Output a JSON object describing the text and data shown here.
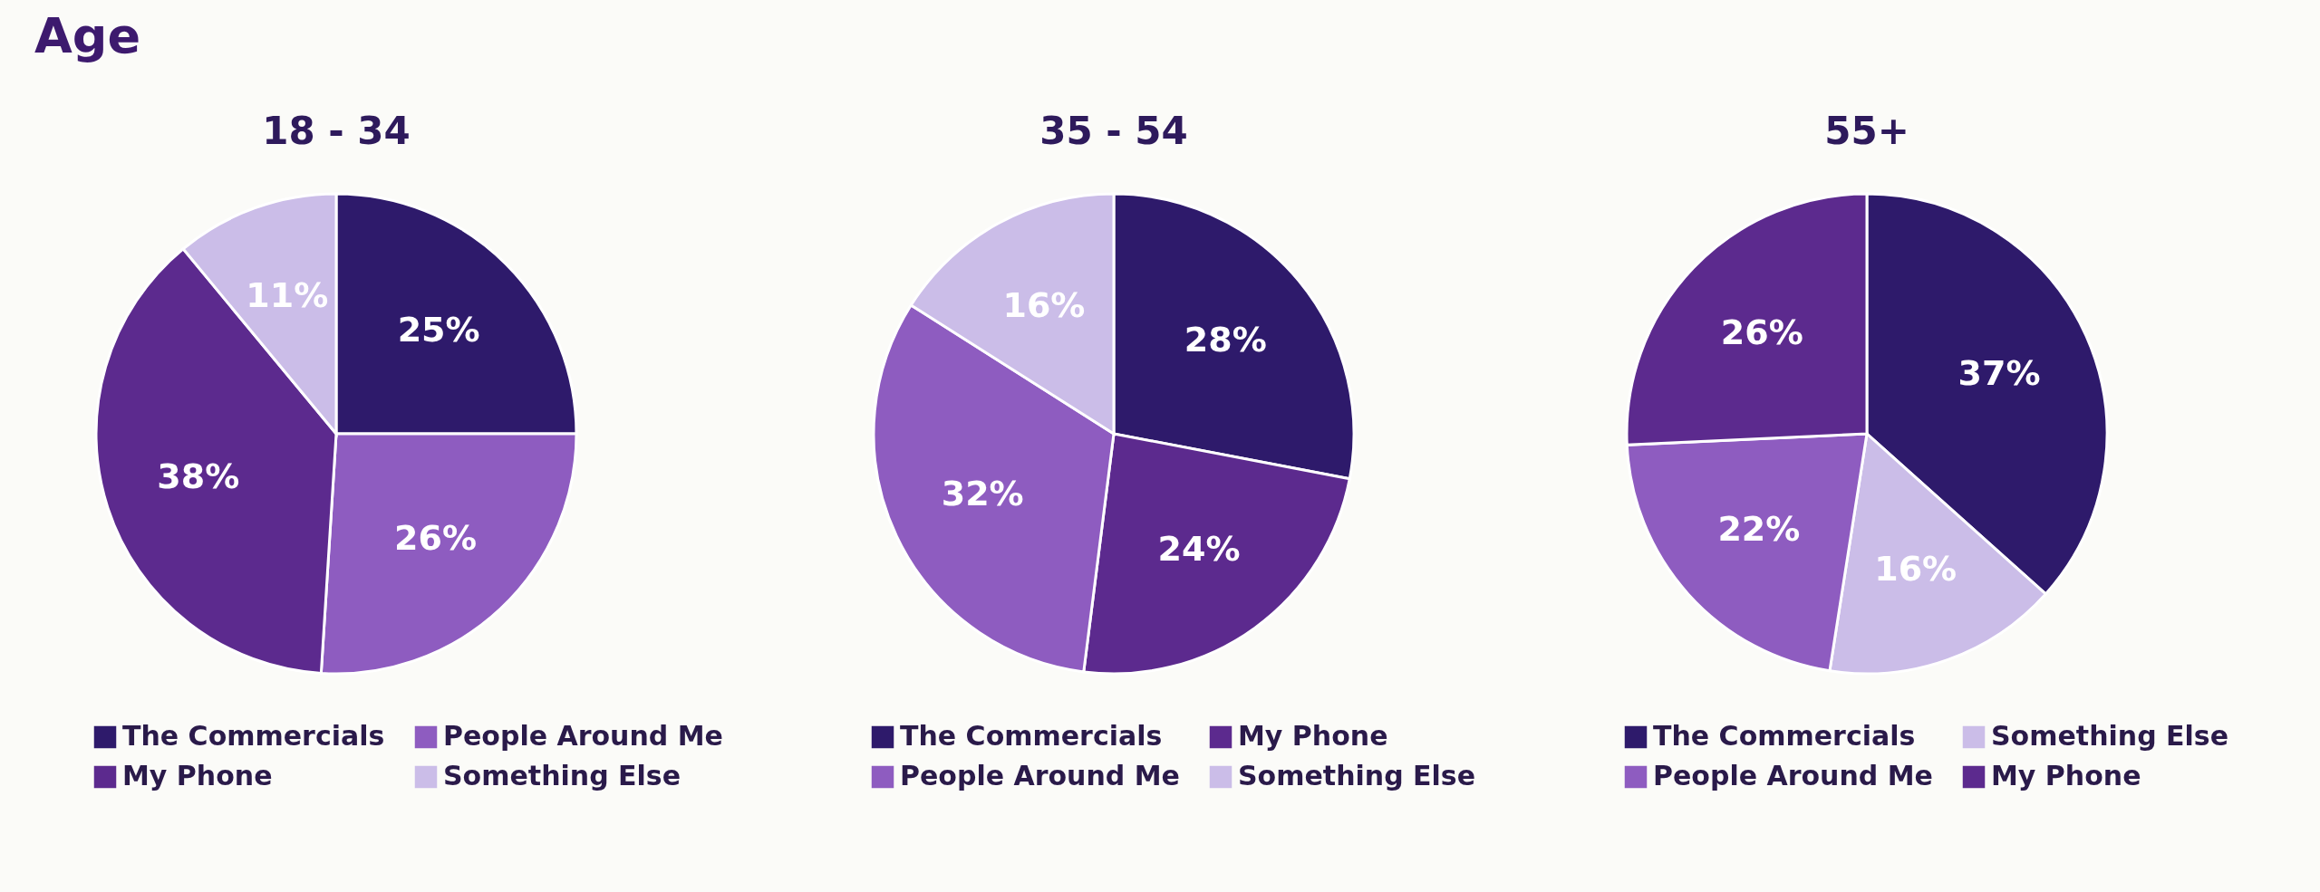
{
  "chart_data": [
    {
      "type": "pie",
      "title": "18 - 34",
      "annotations": [
        "Age"
      ],
      "legend": "bottom",
      "categories": [
        "The Commercials",
        "People Around Me",
        "My Phone",
        "Something Else"
      ],
      "values": [
        25,
        26,
        38,
        11
      ],
      "value_labels": [
        "25%",
        "26%",
        "38%",
        "11%"
      ],
      "colors": [
        "#2e1a6b",
        "#8e5cc0",
        "#5c2a8e",
        "#cbbde8"
      ]
    },
    {
      "type": "pie",
      "title": "35 - 54",
      "legend": "bottom",
      "categories": [
        "The Commercials",
        "My Phone",
        "People Around Me",
        "Something Else"
      ],
      "values": [
        28,
        24,
        32,
        16
      ],
      "value_labels": [
        "28%",
        "24%",
        "32%",
        "16%"
      ],
      "colors": [
        "#2e1a6b",
        "#5c2a8e",
        "#8e5cc0",
        "#cbbde8"
      ]
    },
    {
      "type": "pie",
      "title": "55+",
      "legend": "bottom",
      "categories": [
        "The Commercials",
        "Something Else",
        "People Around Me",
        "My Phone"
      ],
      "values": [
        37,
        16,
        22,
        26
      ],
      "value_labels": [
        "37%",
        "16%",
        "22%",
        "26%"
      ],
      "colors": [
        "#2e1a6b",
        "#cbbde8",
        "#8e5cc0",
        "#5c2a8e"
      ]
    }
  ]
}
